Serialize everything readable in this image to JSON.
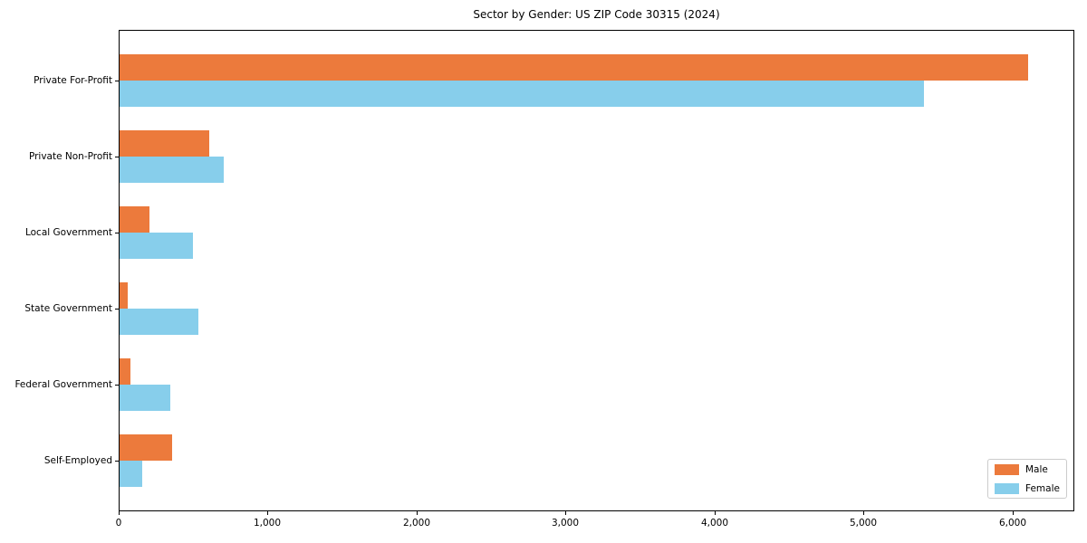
{
  "chart_data": {
    "type": "bar",
    "orientation": "horizontal",
    "title": "Sector by Gender: US ZIP Code 30315 (2024)",
    "categories": [
      "Private For-Profit",
      "Private Non-Profit",
      "Local Government",
      "State Government",
      "Federal Government",
      "Self-Employed"
    ],
    "series": [
      {
        "name": "Male",
        "color": "#EC7A3C",
        "values": [
          6100,
          600,
          200,
          55,
          70,
          350
        ]
      },
      {
        "name": "Female",
        "color": "#87CEEB",
        "values": [
          5400,
          700,
          490,
          530,
          340,
          150
        ]
      }
    ],
    "xlabel": "",
    "ylabel": "",
    "xlim": [
      0,
      6414
    ],
    "xticks": [
      0,
      1000,
      2000,
      3000,
      4000,
      5000,
      6000
    ],
    "xtick_labels": [
      "0",
      "1,000",
      "2,000",
      "3,000",
      "4,000",
      "5,000",
      "6,000"
    ],
    "grid": false,
    "legend_position": "lower right"
  }
}
